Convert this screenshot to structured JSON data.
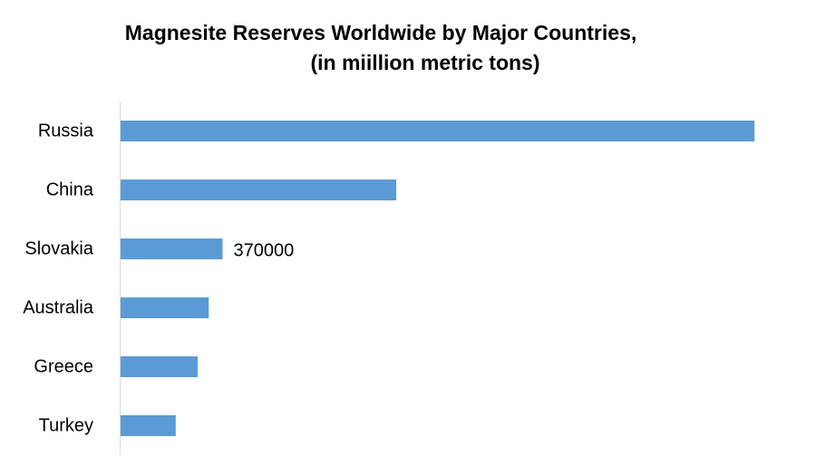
{
  "chart_data": {
    "type": "bar",
    "orientation": "horizontal",
    "title": "Magnesite Reserves Worldwide by Major Countries,",
    "subtitle": "(in miillion metric tons)",
    "categories": [
      "Russia",
      "China",
      "Slovakia",
      "Australia",
      "Greece",
      "Turkey"
    ],
    "values": [
      2300000,
      1000000,
      370000,
      320000,
      280000,
      200000
    ],
    "data_labels": [
      "",
      "",
      "370000",
      "",
      "",
      ""
    ],
    "xlim": [
      0,
      2500000
    ],
    "xlabel": "",
    "ylabel": "",
    "grid": false,
    "legend": "none",
    "bar_color": "#5b9bd5",
    "axis_color": "#d9d9d9"
  }
}
